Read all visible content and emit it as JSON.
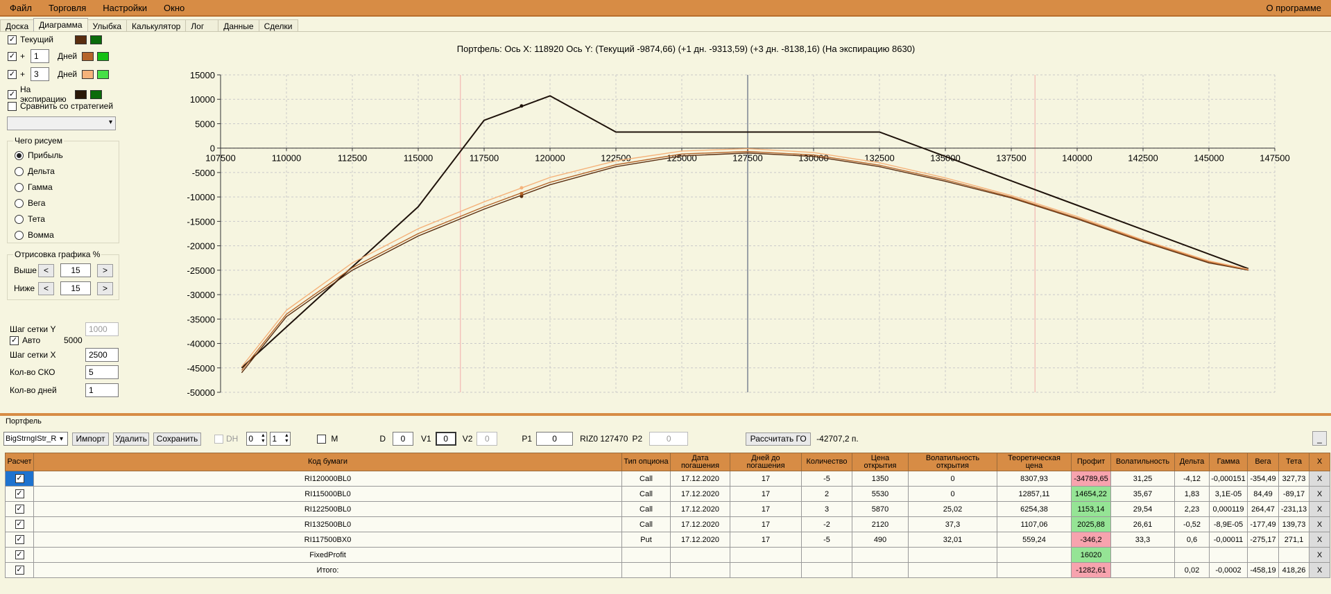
{
  "menu": {
    "items": [
      "Файл",
      "Торговля",
      "Настройки",
      "Окно"
    ],
    "about": "О программе"
  },
  "tabs": [
    "Доска",
    "Диаграмма",
    "Улыбка",
    "Калькулятор",
    "Лог",
    "Данные",
    "Сделки"
  ],
  "active_tab": "Диаграмма",
  "left_panel": {
    "current_label": "Текущий",
    "plus1": {
      "plus": "+",
      "days": "1",
      "days_label": "Дней"
    },
    "plus3": {
      "plus": "+",
      "days": "3",
      "days_label": "Дней"
    },
    "expiry_label": "На экспирацию",
    "compare_label": "Сравнить со стратегией",
    "colors": {
      "current": [
        "#5a2e10",
        "#0b6b0b"
      ],
      "plus1": [
        "#b5652a",
        "#16c016"
      ],
      "plus3": [
        "#f5b27a",
        "#47e047"
      ],
      "expiry": [
        "#2a1808",
        "#0b6b0b"
      ]
    },
    "draw_group_title": "Чего рисуем",
    "radios": [
      "Прибыль",
      "Дельта",
      "Гамма",
      "Вега",
      "Тета",
      "Вомма"
    ],
    "radio_selected": 0,
    "render_group_title": "Отрисовка графика %",
    "above_label": "Выше",
    "below_label": "Ниже",
    "above_value": "15",
    "below_value": "15",
    "btn_less": "<",
    "btn_more": ">",
    "grid_y_label": "Шаг сетки Y",
    "grid_y_value": "1000",
    "auto_label": "Авто",
    "auto_value": "5000",
    "grid_x_label": "Шаг сетки X",
    "grid_x_value": "2500",
    "sko_label": "Кол-во СКО",
    "sko_value": "5",
    "days_label": "Кол-во дней",
    "days_value": "1"
  },
  "chart_header": "Портфель: Ось X:  118920 Ось Y:  (Текущий -9874,66)  (+1 дн. -9313,59)  (+3 дн. -8138,16)  (На экспирацию 8630)",
  "chart_data": {
    "type": "line",
    "xlim": [
      107500,
      147500
    ],
    "ylim": [
      -50000,
      15000
    ],
    "x_ticks": [
      107500,
      110000,
      112500,
      115000,
      117500,
      120000,
      122500,
      125000,
      127500,
      130000,
      132500,
      135000,
      137500,
      140000,
      142500,
      145000,
      147500
    ],
    "y_ticks": [
      15000,
      10000,
      5000,
      0,
      -5000,
      -10000,
      -15000,
      -20000,
      -25000,
      -30000,
      -35000,
      -40000,
      -45000,
      -50000
    ],
    "grid": true,
    "vertical_markers": [
      116600,
      127500,
      138400
    ],
    "cursor": {
      "x": 118920,
      "y_expiry": 8630,
      "y_current": -9874.66,
      "y_plus1": -9313.59,
      "y_plus3": -8138.16
    },
    "series": [
      {
        "color": "#1e120a",
        "x": [
          108300,
          115000,
          117500,
          120000,
          122500,
          125000,
          127500,
          130000,
          132500,
          137500,
          142500,
          146500
        ],
        "y": [
          -45000,
          -12000,
          5700,
          10700,
          3300,
          3300,
          3300,
          3300,
          3300,
          -6700,
          -16700,
          -24700
        ]
      },
      {
        "color": "#5a2e10",
        "x": [
          108300,
          110000,
          112500,
          115000,
          117500,
          120000,
          122500,
          125000,
          127500,
          130000,
          132500,
          135000,
          137500,
          140000,
          142500,
          145000,
          146500
        ],
        "y": [
          -46000,
          -34500,
          -25000,
          -18000,
          -12500,
          -7500,
          -3800,
          -1600,
          -1000,
          -1700,
          -3800,
          -6800,
          -10200,
          -14500,
          -19200,
          -23500,
          -25000
        ]
      },
      {
        "color": "#b5652a",
        "x": [
          108300,
          110000,
          112500,
          115000,
          117500,
          120000,
          122500,
          125000,
          127500,
          130000,
          132500,
          135000,
          137500,
          140000,
          142500,
          145000,
          146500
        ],
        "y": [
          -45500,
          -34000,
          -24500,
          -17500,
          -12000,
          -7000,
          -3400,
          -1200,
          -700,
          -1400,
          -3500,
          -6500,
          -10000,
          -14300,
          -19000,
          -23300,
          -24900
        ]
      },
      {
        "color": "#f5b27a",
        "x": [
          108300,
          110000,
          112500,
          115000,
          117500,
          120000,
          122500,
          125000,
          127500,
          130000,
          132500,
          135000,
          137500,
          140000,
          142500,
          145000,
          146500
        ],
        "y": [
          -44800,
          -33200,
          -23500,
          -16500,
          -11000,
          -6000,
          -2600,
          -600,
          -100,
          -900,
          -3000,
          -6100,
          -9700,
          -14000,
          -18800,
          -23100,
          -24800
        ]
      }
    ]
  },
  "portfolio": {
    "title": "Портфель",
    "strategy": "BigStrngIStr_R",
    "import": "Импорт",
    "delete": "Удалить",
    "save": "Сохранить",
    "dh_label": "DH",
    "spin1": "0",
    "spin2": "1",
    "m_label": "M",
    "d_label": "D",
    "d_value": "0",
    "v1_label": "V1",
    "v1_value": "0",
    "v2_label": "V2",
    "v2_value": "0",
    "p1_label": "P1",
    "p1_value": "0",
    "riz_label": "RIZ0 127470",
    "p2_label": "P2",
    "p2_value": "0",
    "calc_button": "Рассчитать ГО",
    "go_value": "-42707,2 п.",
    "min_button": "_"
  },
  "table": {
    "headers": [
      "Расчет",
      "Код бумаги",
      "Тип опциона",
      "Дата погашения",
      "Дней до погашения",
      "Количество",
      "Цена открытия",
      "Волатильность открытия",
      "Теоретическая цена",
      "Профит",
      "Волатильность",
      "Дельта",
      "Гамма",
      "Вега",
      "Тета",
      "X"
    ],
    "rows": [
      {
        "code": "RI120000BL0",
        "type": "Call",
        "date": "17.12.2020",
        "days": "17",
        "qty": "-5",
        "open": "1350",
        "vol_open": "0",
        "theor": "8307,93",
        "profit": "-34789,65",
        "profit_sign": "neg",
        "vol": "31,25",
        "delta": "-4,12",
        "gamma": "-0,000151",
        "vega": "-354,49",
        "theta": "327,73",
        "x": "X"
      },
      {
        "code": "RI115000BL0",
        "type": "Call",
        "date": "17.12.2020",
        "days": "17",
        "qty": "2",
        "open": "5530",
        "vol_open": "0",
        "theor": "12857,11",
        "profit": "14654,22",
        "profit_sign": "pos",
        "vol": "35,67",
        "delta": "1,83",
        "gamma": "3,1E-05",
        "vega": "84,49",
        "theta": "-89,17",
        "x": "X"
      },
      {
        "code": "RI122500BL0",
        "type": "Call",
        "date": "17.12.2020",
        "days": "17",
        "qty": "3",
        "open": "5870",
        "vol_open": "25,02",
        "theor": "6254,38",
        "profit": "1153,14",
        "profit_sign": "pos",
        "vol": "29,54",
        "delta": "2,23",
        "gamma": "0,000119",
        "vega": "264,47",
        "theta": "-231,13",
        "x": "X"
      },
      {
        "code": "RI132500BL0",
        "type": "Call",
        "date": "17.12.2020",
        "days": "17",
        "qty": "-2",
        "open": "2120",
        "vol_open": "37,3",
        "theor": "1107,06",
        "profit": "2025,88",
        "profit_sign": "pos",
        "vol": "26,61",
        "delta": "-0,52",
        "gamma": "-8,9E-05",
        "vega": "-177,49",
        "theta": "139,73",
        "x": "X"
      },
      {
        "code": "RI117500BX0",
        "type": "Put",
        "date": "17.12.2020",
        "days": "17",
        "qty": "-5",
        "open": "490",
        "vol_open": "32,01",
        "theor": "559,24",
        "profit": "-346,2",
        "profit_sign": "neg",
        "vol": "33,3",
        "delta": "0,6",
        "gamma": "-0,00011",
        "vega": "-275,17",
        "theta": "271,1",
        "x": "X"
      },
      {
        "code": "FixedProfit",
        "type": "",
        "date": "",
        "days": "",
        "qty": "",
        "open": "",
        "vol_open": "",
        "theor": "",
        "profit": "16020",
        "profit_sign": "pos",
        "vol": "",
        "delta": "",
        "gamma": "",
        "vega": "",
        "theta": "",
        "x": "X"
      },
      {
        "code": "Итого:",
        "type": "",
        "date": "",
        "days": "",
        "qty": "",
        "open": "",
        "vol_open": "",
        "theor": "",
        "profit": "-1282,61",
        "profit_sign": "neg",
        "vol": "",
        "delta": "0,02",
        "gamma": "-0,0002",
        "vega": "-458,19",
        "theta": "418,26",
        "x": "X"
      }
    ]
  }
}
